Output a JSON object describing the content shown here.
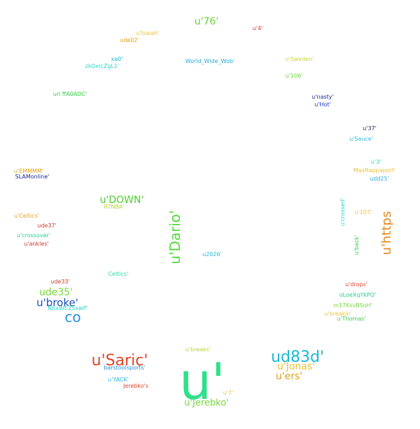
{
  "cloud": {
    "words": [
      {
        "text": "u'",
        "color": "#2ee08a"
      },
      {
        "text": "u'Saric'",
        "color": "#e0452a"
      },
      {
        "text": "ud83d'",
        "color": "#1ab8d6"
      },
      {
        "text": "co",
        "color": "#2a8fd6"
      },
      {
        "text": "u'Dario'",
        "color": "#52d93a"
      },
      {
        "text": "u'https",
        "color": "#e08a1a"
      },
      {
        "text": "u'broke'",
        "color": "#1a4fb8"
      },
      {
        "text": "ude35'",
        "color": "#7ad63a"
      },
      {
        "text": "u'DOWN'",
        "color": "#4fcf30"
      },
      {
        "text": "u'76'",
        "color": "#6ed43a"
      },
      {
        "text": "u'Jonas'",
        "color": "#e8c23a"
      },
      {
        "text": "u'ers'",
        "color": "#e0a21a"
      },
      {
        "text": "u'Jerebko'",
        "color": "#7ad63a"
      },
      {
        "text": "u'Isaiah'",
        "color": "#e8c23a"
      },
      {
        "text": "ude02'",
        "color": "#e0a21a"
      },
      {
        "text": "u'4'",
        "color": "#c93a2a"
      },
      {
        "text": "xa0'",
        "color": "#1ab8d6"
      },
      {
        "text": "zk0xrcZgL1'",
        "color": "#2ad6c0"
      },
      {
        "text": "World_Wide_Wob'",
        "color": "#2aa8d6"
      },
      {
        "text": "u'Sweden'",
        "color": "#c9d63a"
      },
      {
        "text": "u'106'",
        "color": "#6ed43a"
      },
      {
        "text": "url ffA0ADC'",
        "color": "#3ac94a"
      },
      {
        "text": "u'nasty'",
        "color": "#1a2a8f"
      },
      {
        "text": "u'Hot'",
        "color": "#1a3ab8"
      },
      {
        "text": "u'37'",
        "color": "#1a1a5a"
      },
      {
        "text": "u'Sauce'",
        "color": "#2ab8d6"
      },
      {
        "text": "u'3'",
        "color": "#2ad6c0"
      },
      {
        "text": "MaxRappaport'",
        "color": "#e8c23a"
      },
      {
        "text": "udd25'",
        "color": "#2aa8d6"
      },
      {
        "text": "u'EMMMM'",
        "color": "#e0a21a"
      },
      {
        "text": "SLAMonline'",
        "color": "#1a2a8f"
      },
      {
        "text": "u'Celtics'",
        "color": "#e0a21a"
      },
      {
        "text": "ude37'",
        "color": "#c93a2a"
      },
      {
        "text": "u'crossover'",
        "color": "#2ac98f"
      },
      {
        "text": "u'ankles'",
        "color": "#c93a2a"
      },
      {
        "text": "RTNBA'",
        "color": "#b8d63a"
      },
      {
        "text": "u'107'",
        "color": "#e8c23a"
      },
      {
        "text": "u'crossed'",
        "color": "#2ad6c0"
      },
      {
        "text": "u'back'",
        "color": "#3ac94a"
      },
      {
        "text": "u2026'",
        "color": "#2ab8d6"
      },
      {
        "text": "Celtics'",
        "color": "#2ad6a8"
      },
      {
        "text": "ude33'",
        "color": "#c93a2a"
      },
      {
        "text": "NbxWEZ5xwP'",
        "color": "#2ad6c0"
      },
      {
        "text": "u'drops'",
        "color": "#e0452a"
      },
      {
        "text": "oLoeXqYkPO'",
        "color": "#2ac98f"
      },
      {
        "text": "m17KsvBSoH'",
        "color": "#7ad63a"
      },
      {
        "text": "u'breakin'",
        "color": "#e8c23a"
      },
      {
        "text": "u'Thomas'",
        "color": "#3ac94a"
      },
      {
        "text": "u'breaks'",
        "color": "#b8d63a"
      },
      {
        "text": "barstoolsports'",
        "color": "#2a8fd6"
      },
      {
        "text": "u'YACK'",
        "color": "#2ab8d6"
      },
      {
        "text": "Jerebko's",
        "color": "#e0452a"
      },
      {
        "text": "u'7'",
        "color": "#e8c23a"
      }
    ]
  }
}
